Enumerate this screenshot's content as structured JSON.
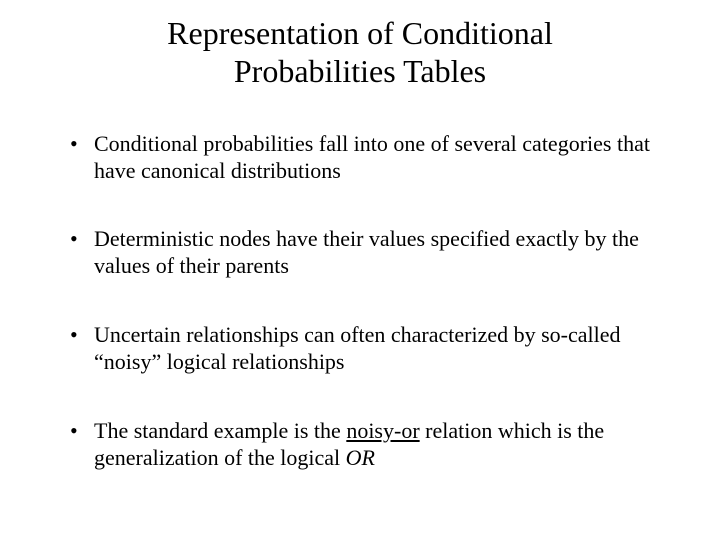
{
  "slide": {
    "title_line1": "Representation of Conditional",
    "title_line2": "Probabilities Tables",
    "bullets": [
      {
        "html": "Conditional probabilities fall into one of several categories that have canonical distributions"
      },
      {
        "html": "Deterministic nodes have their values specified exactly by the values of their parents"
      },
      {
        "html": "Uncertain relationships can often characterized by so-called “noisy” logical relationships"
      },
      {
        "html": "The standard example is the <span class=\"underline\">noisy-or</span> relation which is the generalization of the logical <span class=\"italic\">OR</span>"
      }
    ],
    "style": {
      "background_color": "#ffffff",
      "text_color": "#000000",
      "title_fontsize": 32,
      "body_fontsize": 22,
      "font_family": "Times New Roman"
    }
  }
}
